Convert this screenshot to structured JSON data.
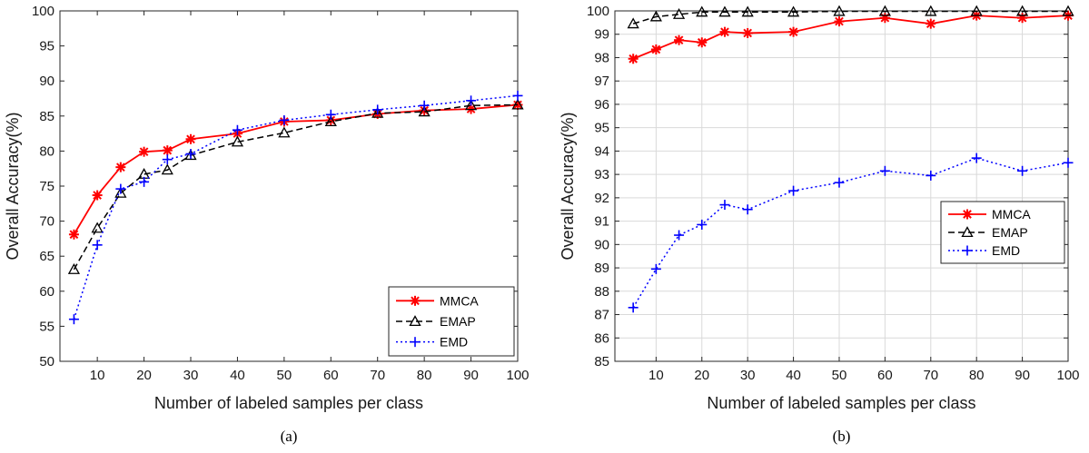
{
  "chart_data": [
    {
      "type": "line",
      "caption": "(a)",
      "xlabel": "Number of labeled samples per class",
      "ylabel": "Overall Accuracy(%)",
      "x": [
        5,
        10,
        15,
        20,
        25,
        30,
        40,
        50,
        60,
        70,
        80,
        90,
        100
      ],
      "xticks": [
        10,
        20,
        30,
        40,
        50,
        60,
        70,
        80,
        90,
        100
      ],
      "ylim": [
        50,
        100
      ],
      "yticks": [
        50,
        55,
        60,
        65,
        70,
        75,
        80,
        85,
        90,
        95,
        100
      ],
      "grid": false,
      "legend_position": "bottom-right",
      "series": [
        {
          "name": "MMCA",
          "color": "#ff0000",
          "style": "solid",
          "marker": "asterisk",
          "values": [
            68.1,
            73.7,
            77.7,
            79.9,
            80.1,
            81.7,
            82.5,
            84.2,
            84.4,
            85.3,
            85.8,
            86.0,
            86.6
          ]
        },
        {
          "name": "EMAP",
          "color": "#000000",
          "style": "dashed",
          "marker": "triangle",
          "values": [
            63.1,
            69.0,
            74.0,
            76.7,
            77.3,
            79.4,
            81.3,
            82.6,
            84.2,
            85.4,
            85.6,
            86.5,
            86.6
          ]
        },
        {
          "name": "EMD",
          "color": "#0000ff",
          "style": "dotted",
          "marker": "plus",
          "values": [
            56.0,
            66.6,
            74.6,
            75.6,
            78.8,
            79.6,
            83.0,
            84.4,
            85.2,
            85.9,
            86.5,
            87.2,
            87.9
          ]
        }
      ]
    },
    {
      "type": "line",
      "caption": "(b)",
      "xlabel": "Number of labeled samples per class",
      "ylabel": "Overall Accuracy(%)",
      "x": [
        5,
        10,
        15,
        20,
        25,
        30,
        40,
        50,
        60,
        70,
        80,
        90,
        100
      ],
      "xticks": [
        10,
        20,
        30,
        40,
        50,
        60,
        70,
        80,
        90,
        100
      ],
      "ylim": [
        85,
        100
      ],
      "yticks": [
        85,
        86,
        87,
        88,
        89,
        90,
        91,
        92,
        93,
        94,
        95,
        96,
        97,
        98,
        99,
        100
      ],
      "grid": true,
      "legend_position": "right",
      "series": [
        {
          "name": "MMCA",
          "color": "#ff0000",
          "style": "solid",
          "marker": "asterisk",
          "values": [
            97.95,
            98.35,
            98.75,
            98.65,
            99.1,
            99.05,
            99.1,
            99.55,
            99.7,
            99.45,
            99.8,
            99.7,
            99.8
          ]
        },
        {
          "name": "EMAP",
          "color": "#000000",
          "style": "dashed",
          "marker": "triangle",
          "values": [
            99.45,
            99.75,
            99.85,
            99.95,
            99.95,
            99.95,
            99.95,
            99.98,
            99.98,
            99.98,
            99.98,
            99.98,
            99.98
          ]
        },
        {
          "name": "EMD",
          "color": "#0000ff",
          "style": "dotted",
          "marker": "plus",
          "values": [
            87.3,
            88.95,
            90.4,
            90.85,
            91.7,
            91.5,
            92.3,
            92.65,
            93.15,
            92.95,
            93.7,
            93.15,
            93.5
          ]
        }
      ]
    }
  ]
}
